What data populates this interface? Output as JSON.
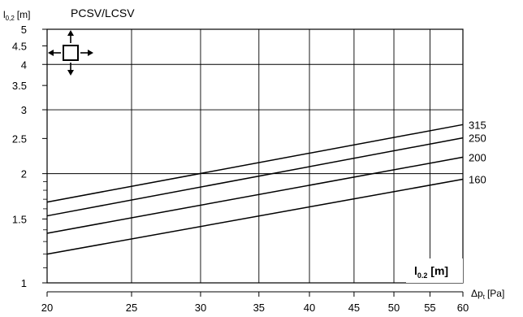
{
  "chart_data": {
    "type": "line",
    "title": "PCSV/LCSV",
    "xlabel": "Δp",
    "xlabel_sub": "t",
    "xlabel_unit": "[Pa]",
    "ylabel": "l",
    "ylabel_sub": "0,2",
    "ylabel_unit": "[m]",
    "x_scale": "log",
    "y_scale": "log",
    "xlim": [
      20,
      60
    ],
    "ylim": [
      1,
      5
    ],
    "x_ticks": [
      20,
      25,
      30,
      35,
      40,
      45,
      50,
      55,
      60
    ],
    "x_tick_labels": [
      "20",
      "25",
      "30",
      "35",
      "40",
      "45",
      "50",
      "55",
      "60"
    ],
    "y_ticks": [
      1,
      1.5,
      2,
      2.5,
      3,
      3.5,
      4,
      4.5,
      5
    ],
    "y_tick_labels": [
      "1",
      "1.5",
      "2",
      "2.5",
      "3",
      "3.5",
      "4",
      "4.5",
      "5"
    ],
    "y_minor_ticks": [
      1.1,
      1.2,
      1.3,
      1.4,
      1.6,
      1.7,
      1.8,
      1.9
    ],
    "x_grid": [
      25,
      30,
      35,
      40,
      45,
      50,
      55
    ],
    "y_grid": [
      2,
      3,
      4
    ],
    "series": [
      {
        "name": "315",
        "x": [
          20,
          60
        ],
        "y": [
          1.67,
          2.73
        ]
      },
      {
        "name": "250",
        "x": [
          20,
          60
        ],
        "y": [
          1.53,
          2.51
        ]
      },
      {
        "name": "200",
        "x": [
          20,
          60
        ],
        "y": [
          1.37,
          2.22
        ]
      },
      {
        "name": "160",
        "x": [
          20,
          60
        ],
        "y": [
          1.2,
          1.93
        ]
      }
    ],
    "inset_label": "l",
    "inset_label_sub": "0.2",
    "inset_label_unit": " [m]",
    "icon": "four-direction-arrows-square-icon",
    "grid": true
  }
}
